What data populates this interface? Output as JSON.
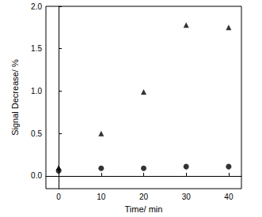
{
  "chart_data": {
    "type": "scatter",
    "x_label": "Time/ min",
    "y_label": "Signal Decrease/ %",
    "xlim": [
      -3,
      43
    ],
    "xticks": [
      0,
      10,
      20,
      30,
      40
    ],
    "ylim": [
      -0.15,
      2.0
    ],
    "yticks": [
      {
        "value": 0,
        "label": "0.0"
      },
      {
        "value": 0.5,
        "label": "0.5"
      },
      {
        "value": 1,
        "label": "1.0"
      },
      {
        "value": 1.5,
        "label": "1.5"
      },
      {
        "value": 2,
        "label": "2.0"
      }
    ],
    "grid": false,
    "series": [
      {
        "color": "#000000",
        "marker": "triangle",
        "x": [
          0,
          10,
          20,
          30,
          40
        ],
        "values": [
          0.1,
          0.5,
          0.99,
          1.78,
          1.75
        ]
      },
      {
        "color": "#000000",
        "marker": "circle",
        "x": [
          0,
          10,
          20,
          30,
          40
        ],
        "values": [
          0.06,
          0.09,
          0.09,
          0.11,
          0.11
        ]
      }
    ]
  }
}
